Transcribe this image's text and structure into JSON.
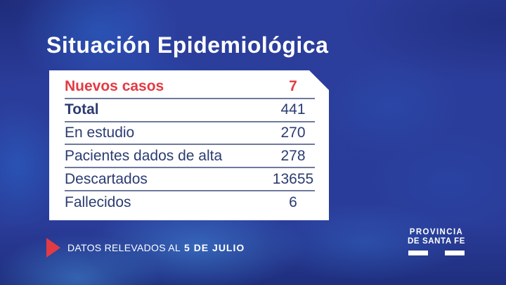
{
  "title": "Situación Epidemiológica",
  "chart_data": {
    "type": "table",
    "title": "Situación Epidemiológica",
    "categories": [
      "Nuevos casos",
      "Total",
      "En estudio",
      "Pacientes dados de alta",
      "Descartados",
      "Fallecidos"
    ],
    "values": [
      7,
      441,
      270,
      278,
      13655,
      6
    ],
    "note": "DATOS RELEVADOS AL 5 DE JULIO"
  },
  "table": {
    "rows": [
      {
        "label": "Nuevos casos",
        "value": "7",
        "style": "highlight"
      },
      {
        "label": "Total",
        "value": "441",
        "style": "bold-label"
      },
      {
        "label": "En estudio",
        "value": "270",
        "style": ""
      },
      {
        "label": "Pacientes dados de alta",
        "value": "278",
        "style": ""
      },
      {
        "label": "Descartados",
        "value": "13655",
        "style": ""
      },
      {
        "label": "Fallecidos",
        "value": "6",
        "style": ""
      }
    ]
  },
  "footer": {
    "date_note_prefix": "DATOS RELEVADOS AL",
    "date_note_bold": "5 DE JULIO"
  },
  "logo": {
    "line1": "PROVINCIA",
    "line2": "DE SANTA FE"
  },
  "icons": {
    "footer_arrow": "red-play-triangle",
    "logo_bars": "two-white-underline-bars"
  },
  "colors": {
    "accent_red": "#e23b43",
    "navy_text": "#2b3c72",
    "divider": "#6e7a9d",
    "background_blue": "#2b3e9b",
    "card_bg": "#ffffff"
  }
}
